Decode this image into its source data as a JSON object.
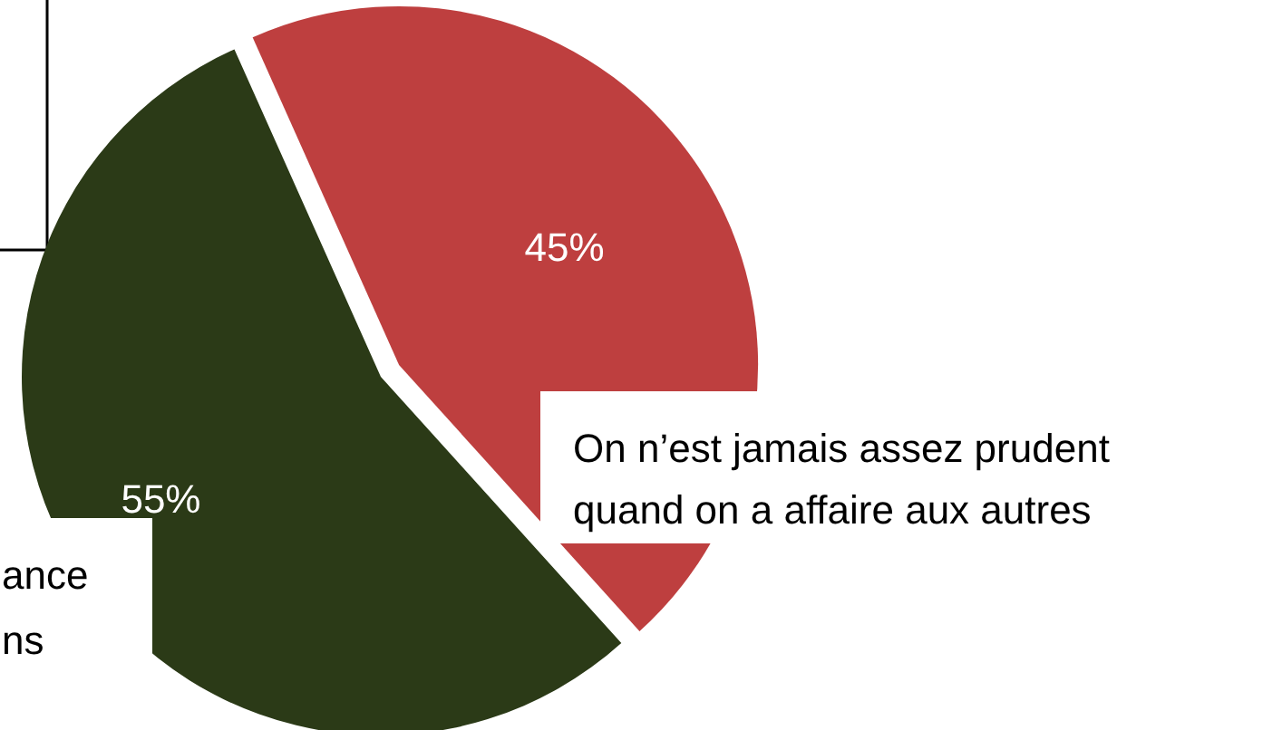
{
  "chart_data": {
    "type": "pie",
    "categories": [
      "ance\nns",
      "On n’est jamais assez prudent\nquand on a affaire aux autres"
    ],
    "values": [
      55,
      45
    ],
    "colors": [
      "#2b3a17",
      "#be3f3f"
    ],
    "value_labels": [
      "55%",
      "45%"
    ]
  }
}
